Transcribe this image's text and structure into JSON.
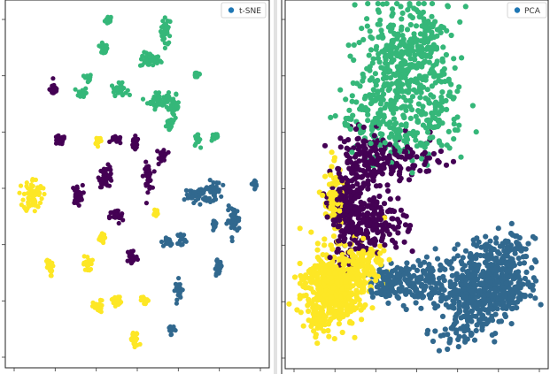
{
  "colors": {
    "purple": "#440154",
    "blue": "#31688e",
    "green": "#35b779",
    "yellow": "#fde725",
    "legend_marker": "#1f77b4"
  },
  "chart_data": [
    {
      "type": "scatter",
      "legend": {
        "label": "t-SNE",
        "placement": "top-right"
      },
      "grid": false,
      "xlim": [
        0,
        100
      ],
      "ylim": [
        0,
        100
      ],
      "clusters": [
        {
          "color": "green",
          "x": 39,
          "y": 95,
          "n": 18,
          "sx": 0.7,
          "sy": 0.6
        },
        {
          "color": "green",
          "x": 61,
          "y": 92,
          "n": 35,
          "sx": 1.0,
          "sy": 1.8
        },
        {
          "color": "green",
          "x": 37,
          "y": 87,
          "n": 22,
          "sx": 0.8,
          "sy": 0.7
        },
        {
          "color": "green",
          "x": 55,
          "y": 84,
          "n": 45,
          "sx": 2.0,
          "sy": 1.0
        },
        {
          "color": "green",
          "x": 31,
          "y": 79,
          "n": 18,
          "sx": 0.7,
          "sy": 0.6
        },
        {
          "color": "green",
          "x": 73,
          "y": 80,
          "n": 18,
          "sx": 0.8,
          "sy": 0.5
        },
        {
          "color": "green",
          "x": 29,
          "y": 75,
          "n": 20,
          "sx": 0.8,
          "sy": 0.8
        },
        {
          "color": "green",
          "x": 43,
          "y": 76,
          "n": 30,
          "sx": 1.5,
          "sy": 0.8
        },
        {
          "color": "green",
          "x": 58,
          "y": 73,
          "n": 50,
          "sx": 2.0,
          "sy": 1.2
        },
        {
          "color": "green",
          "x": 64,
          "y": 71,
          "n": 40,
          "sx": 1.0,
          "sy": 1.6
        },
        {
          "color": "green",
          "x": 62,
          "y": 66,
          "n": 15,
          "sx": 0.6,
          "sy": 0.6
        },
        {
          "color": "green",
          "x": 73,
          "y": 62,
          "n": 18,
          "sx": 0.6,
          "sy": 0.8
        },
        {
          "color": "green",
          "x": 80,
          "y": 63,
          "n": 18,
          "sx": 0.7,
          "sy": 0.6
        },
        {
          "color": "purple",
          "x": 18,
          "y": 76,
          "n": 25,
          "sx": 0.8,
          "sy": 0.9
        },
        {
          "color": "purple",
          "x": 20,
          "y": 62,
          "n": 30,
          "sx": 1.2,
          "sy": 0.6
        },
        {
          "color": "purple",
          "x": 42,
          "y": 62,
          "n": 18,
          "sx": 1.0,
          "sy": 0.5
        },
        {
          "color": "purple",
          "x": 49,
          "y": 61,
          "n": 22,
          "sx": 0.8,
          "sy": 0.9
        },
        {
          "color": "purple",
          "x": 60,
          "y": 58,
          "n": 25,
          "sx": 0.8,
          "sy": 1.0
        },
        {
          "color": "purple",
          "x": 38,
          "y": 52,
          "n": 45,
          "sx": 1.3,
          "sy": 1.4
        },
        {
          "color": "purple",
          "x": 54,
          "y": 52,
          "n": 40,
          "sx": 0.8,
          "sy": 1.8
        },
        {
          "color": "purple",
          "x": 27,
          "y": 47,
          "n": 30,
          "sx": 1.0,
          "sy": 1.3
        },
        {
          "color": "purple",
          "x": 42,
          "y": 41,
          "n": 30,
          "sx": 1.3,
          "sy": 1.0
        },
        {
          "color": "purple",
          "x": 48,
          "y": 30,
          "n": 30,
          "sx": 1.0,
          "sy": 1.2
        },
        {
          "color": "yellow",
          "x": 35,
          "y": 62,
          "n": 18,
          "sx": 0.7,
          "sy": 0.6
        },
        {
          "color": "yellow",
          "x": 10,
          "y": 47,
          "n": 70,
          "sx": 1.8,
          "sy": 2.3
        },
        {
          "color": "yellow",
          "x": 57,
          "y": 42,
          "n": 15,
          "sx": 0.6,
          "sy": 0.7
        },
        {
          "color": "yellow",
          "x": 36,
          "y": 35,
          "n": 18,
          "sx": 0.8,
          "sy": 0.6
        },
        {
          "color": "yellow",
          "x": 16,
          "y": 27,
          "n": 25,
          "sx": 0.7,
          "sy": 1.2
        },
        {
          "color": "yellow",
          "x": 31,
          "y": 28,
          "n": 25,
          "sx": 0.8,
          "sy": 1.1
        },
        {
          "color": "yellow",
          "x": 42,
          "y": 18,
          "n": 22,
          "sx": 0.9,
          "sy": 0.7
        },
        {
          "color": "yellow",
          "x": 35,
          "y": 16,
          "n": 25,
          "sx": 1.0,
          "sy": 1.0
        },
        {
          "color": "yellow",
          "x": 53,
          "y": 18,
          "n": 15,
          "sx": 0.7,
          "sy": 0.6
        },
        {
          "color": "yellow",
          "x": 49,
          "y": 7,
          "n": 28,
          "sx": 0.9,
          "sy": 1.1
        },
        {
          "color": "blue",
          "x": 73,
          "y": 47,
          "n": 45,
          "sx": 2.2,
          "sy": 1.0
        },
        {
          "color": "blue",
          "x": 79,
          "y": 48,
          "n": 35,
          "sx": 1.5,
          "sy": 1.4
        },
        {
          "color": "blue",
          "x": 95,
          "y": 50,
          "n": 18,
          "sx": 0.8,
          "sy": 0.6
        },
        {
          "color": "blue",
          "x": 87,
          "y": 40,
          "n": 40,
          "sx": 1.2,
          "sy": 1.8
        },
        {
          "color": "blue",
          "x": 80,
          "y": 39,
          "n": 15,
          "sx": 0.6,
          "sy": 0.6
        },
        {
          "color": "blue",
          "x": 62,
          "y": 34,
          "n": 22,
          "sx": 0.7,
          "sy": 0.6
        },
        {
          "color": "blue",
          "x": 67,
          "y": 35,
          "n": 20,
          "sx": 0.7,
          "sy": 0.8
        },
        {
          "color": "blue",
          "x": 81,
          "y": 27,
          "n": 25,
          "sx": 0.8,
          "sy": 1.0
        },
        {
          "color": "blue",
          "x": 66,
          "y": 21,
          "n": 30,
          "sx": 0.7,
          "sy": 1.3
        },
        {
          "color": "blue",
          "x": 63,
          "y": 10,
          "n": 18,
          "sx": 0.6,
          "sy": 0.6
        }
      ]
    },
    {
      "type": "scatter",
      "legend": {
        "label": "PCA",
        "placement": "top-right"
      },
      "grid": false,
      "xlim": [
        0,
        100
      ],
      "ylim": [
        0,
        100
      ],
      "clusters": [
        {
          "color": "green",
          "x": 43,
          "y": 82,
          "n": 320,
          "sx": 8,
          "sy": 8
        },
        {
          "color": "green",
          "x": 54,
          "y": 90,
          "n": 90,
          "sx": 6,
          "sy": 5
        },
        {
          "color": "green",
          "x": 33,
          "y": 68,
          "n": 90,
          "sx": 6,
          "sy": 5
        },
        {
          "color": "green",
          "x": 58,
          "y": 72,
          "n": 80,
          "sx": 5,
          "sy": 6
        },
        {
          "color": "green",
          "x": 48,
          "y": 63,
          "n": 70,
          "sx": 7,
          "sy": 4
        },
        {
          "color": "purple",
          "x": 23,
          "y": 42,
          "n": 190,
          "sx": 3,
          "sy": 7
        },
        {
          "color": "purple",
          "x": 34,
          "y": 40,
          "n": 150,
          "sx": 6,
          "sy": 4
        },
        {
          "color": "purple",
          "x": 42,
          "y": 57,
          "n": 120,
          "sx": 9,
          "sy": 3
        },
        {
          "color": "purple",
          "x": 30,
          "y": 56,
          "n": 80,
          "sx": 5,
          "sy": 4
        },
        {
          "color": "yellow",
          "x": 18,
          "y": 22,
          "n": 520,
          "sx": 5.5,
          "sy": 5
        },
        {
          "color": "yellow",
          "x": 18,
          "y": 46,
          "n": 80,
          "sx": 1.8,
          "sy": 5
        },
        {
          "color": "yellow",
          "x": 30,
          "y": 28,
          "n": 90,
          "sx": 4,
          "sy": 3
        },
        {
          "color": "yellow",
          "x": 12,
          "y": 12,
          "n": 40,
          "sx": 2,
          "sy": 2
        },
        {
          "color": "blue",
          "x": 74,
          "y": 22,
          "n": 430,
          "sx": 8,
          "sy": 4.5
        },
        {
          "color": "blue",
          "x": 86,
          "y": 24,
          "n": 110,
          "sx": 5,
          "sy": 4
        },
        {
          "color": "blue",
          "x": 48,
          "y": 23,
          "n": 120,
          "sx": 7,
          "sy": 3
        },
        {
          "color": "blue",
          "x": 83,
          "y": 32,
          "n": 70,
          "sx": 6,
          "sy": 3
        },
        {
          "color": "blue",
          "x": 66,
          "y": 10,
          "n": 60,
          "sx": 5,
          "sy": 3
        },
        {
          "color": "blue",
          "x": 38,
          "y": 22,
          "n": 50,
          "sx": 3,
          "sy": 2
        }
      ]
    }
  ]
}
